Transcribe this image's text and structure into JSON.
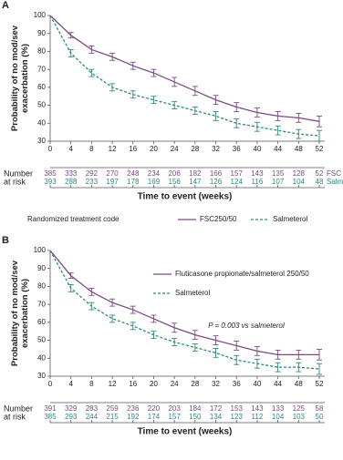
{
  "chart_data": [
    {
      "type": "line",
      "panel_label": "A",
      "ylabel": [
        "Probability of no mod/sev",
        "exacerbation (%)"
      ],
      "xlabel": "Time to event (weeks)",
      "x": [
        0,
        4,
        8,
        12,
        16,
        20,
        24,
        28,
        32,
        36,
        40,
        44,
        48,
        52
      ],
      "xlim": [
        0,
        52
      ],
      "xticks": [
        0,
        4,
        8,
        12,
        16,
        20,
        24,
        28,
        32,
        36,
        40,
        44,
        48,
        52
      ],
      "ylim": [
        30,
        100
      ],
      "yticks": [
        30,
        40,
        50,
        60,
        70,
        80,
        90,
        100
      ],
      "legend": "bottom",
      "legend_title": "Randomized treatment code",
      "series": [
        {
          "name": "FSC250/50",
          "color": "#7b4a86",
          "dash": false,
          "values": [
            100,
            89,
            81,
            77,
            72,
            68,
            63,
            58,
            53,
            49,
            46,
            44,
            43,
            41
          ],
          "errors": [
            0,
            1.5,
            2,
            2,
            2,
            2,
            2.5,
            2.5,
            2.5,
            2.5,
            2.5,
            2.5,
            2.5,
            3
          ]
        },
        {
          "name": "Salmeterol",
          "color": "#2a8a7e",
          "dash": true,
          "values": [
            100,
            79,
            68,
            60,
            56,
            53,
            50,
            47,
            44,
            40,
            38,
            36,
            34,
            33
          ],
          "errors": [
            0,
            2,
            2,
            2,
            2,
            2,
            2,
            2,
            2.5,
            2.5,
            2.5,
            2.5,
            2.5,
            3
          ]
        }
      ],
      "risk_table": {
        "title": [
          "Number",
          "at risk"
        ],
        "rows": [
          {
            "label": "FSC",
            "values": [
              385,
              333,
              292,
              270,
              248,
              234,
              206,
              182,
              166,
              157,
              143,
              135,
              128,
              52
            ]
          },
          {
            "label": "Salm",
            "values": [
              393,
              288,
              233,
              197,
              178,
              169,
              156,
              147,
              126,
              124,
              116,
              107,
              104,
              48
            ]
          }
        ]
      }
    },
    {
      "type": "line",
      "panel_label": "B",
      "ylabel": [
        "Probability of no mod/sev",
        "exacerbation (%)"
      ],
      "xlabel": "Time to event (weeks)",
      "x": [
        0,
        4,
        8,
        12,
        16,
        20,
        24,
        28,
        32,
        36,
        40,
        44,
        48,
        52
      ],
      "xlim": [
        0,
        52
      ],
      "xticks": [
        0,
        4,
        8,
        12,
        16,
        20,
        24,
        28,
        32,
        36,
        40,
        44,
        48,
        52
      ],
      "ylim": [
        30,
        100
      ],
      "yticks": [
        30,
        40,
        50,
        60,
        70,
        80,
        90,
        100
      ],
      "legend": "upper right",
      "annotation": "P = 0.003 vs salmeterol",
      "series": [
        {
          "name": "Fluticasone propionate/salmeterol 250/50",
          "color": "#7b4a86",
          "dash": false,
          "values": [
            100,
            86,
            77,
            71,
            67,
            62,
            57,
            53,
            50,
            47,
            44,
            42,
            42,
            42
          ],
          "errors": [
            0,
            1.5,
            2,
            2,
            2,
            2,
            2.5,
            2.5,
            2.5,
            2.5,
            2.5,
            2.5,
            2.5,
            3
          ]
        },
        {
          "name": "Salmeterol",
          "color": "#2a8a7e",
          "dash": true,
          "values": [
            100,
            79,
            69,
            62,
            58,
            53,
            49,
            46,
            43,
            39,
            37,
            35,
            35,
            34
          ],
          "errors": [
            0,
            2,
            2,
            2,
            2,
            2,
            2,
            2,
            2.5,
            2.5,
            2.5,
            2.5,
            2.5,
            3
          ]
        }
      ],
      "risk_table": {
        "title": [
          "Number",
          "at risk"
        ],
        "rows": [
          {
            "values": [
              391,
              329,
              283,
              259,
              236,
              220,
              203,
              184,
              172,
              153,
              143,
              133,
              125,
              58
            ]
          },
          {
            "values": [
              385,
              293,
              244,
              215,
              192,
              174,
              157,
              150,
              134,
              123,
              112,
              104,
              103,
              50
            ]
          }
        ]
      }
    }
  ]
}
